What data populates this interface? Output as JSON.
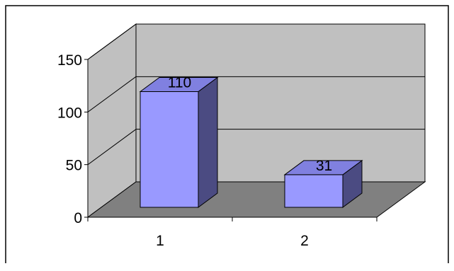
{
  "chart_data": {
    "type": "bar",
    "categories": [
      "1",
      "2"
    ],
    "values": [
      110,
      31
    ],
    "data_labels": [
      "110",
      "31"
    ],
    "y_ticks": [
      0,
      50,
      100,
      150
    ],
    "ylim": [
      0,
      150
    ],
    "grid": true,
    "style": "3d-column",
    "colors": {
      "bar_front": "#9999ff",
      "bar_top": "#8080e0",
      "bar_side": "#4b4b82",
      "wall": "#c0c0c0",
      "floor": "#808080",
      "grid": "#000000"
    }
  }
}
